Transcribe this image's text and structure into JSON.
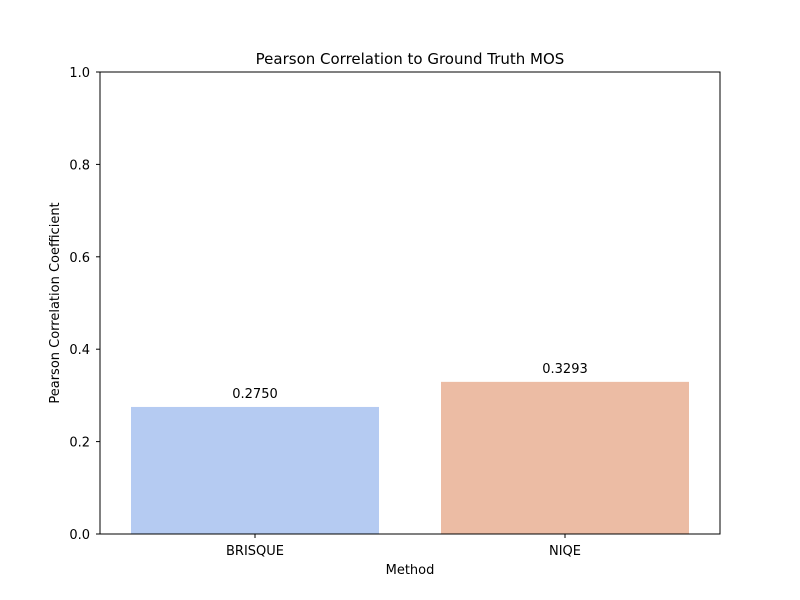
{
  "chart_data": {
    "type": "bar",
    "title": "Pearson Correlation to Ground Truth MOS",
    "xlabel": "Method",
    "ylabel": "Pearson Correlation Coefficient",
    "categories": [
      "BRISQUE",
      "NIQE"
    ],
    "values": [
      0.275,
      0.3293
    ],
    "data_labels": [
      "0.2750",
      "0.3293"
    ],
    "bar_colors": [
      "#b5cbf2",
      "#ecbca4"
    ],
    "ylim": [
      0.0,
      1.0
    ],
    "yticks": [
      0.0,
      0.2,
      0.4,
      0.6,
      0.8,
      1.0
    ],
    "ytick_labels": [
      "0.0",
      "0.2",
      "0.4",
      "0.6",
      "0.8",
      "1.0"
    ],
    "grid": false,
    "legend": "none"
  }
}
